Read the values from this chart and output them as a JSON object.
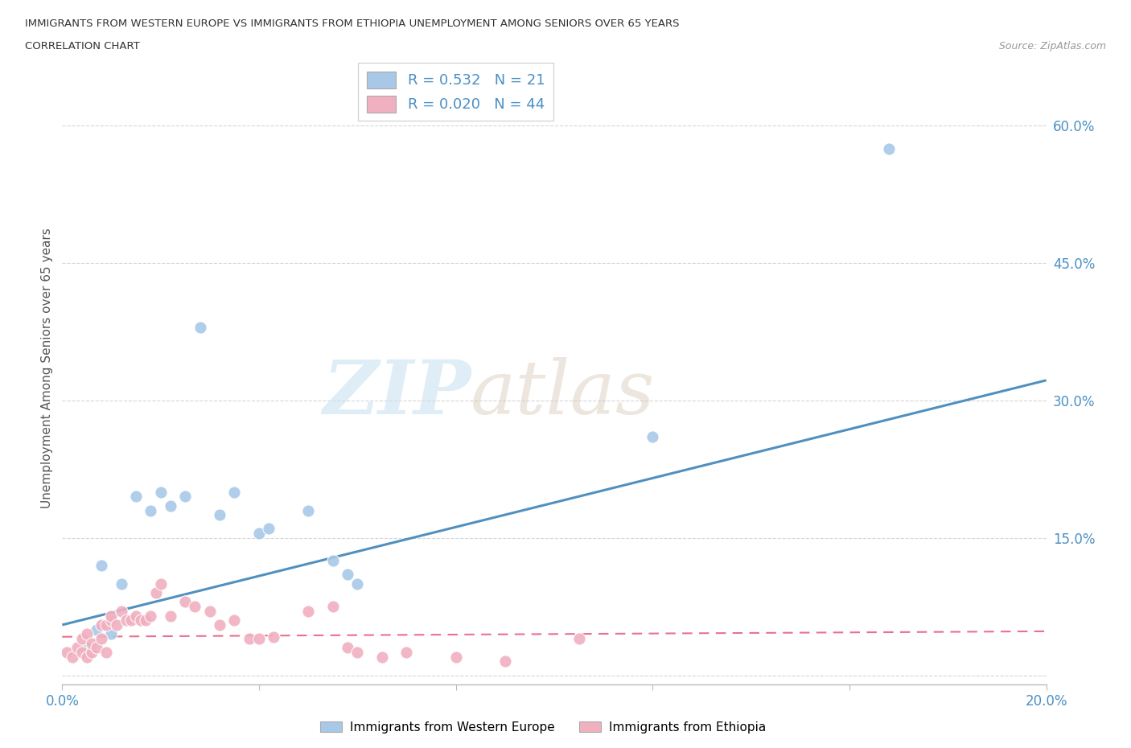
{
  "title_line1": "IMMIGRANTS FROM WESTERN EUROPE VS IMMIGRANTS FROM ETHIOPIA UNEMPLOYMENT AMONG SENIORS OVER 65 YEARS",
  "title_line2": "CORRELATION CHART",
  "source": "Source: ZipAtlas.com",
  "ylabel": "Unemployment Among Seniors over 65 years",
  "xlim": [
    0.0,
    0.2
  ],
  "ylim": [
    -0.01,
    0.68
  ],
  "yticks": [
    0.0,
    0.15,
    0.3,
    0.45,
    0.6
  ],
  "ytick_labels": [
    "",
    "15.0%",
    "30.0%",
    "45.0%",
    "60.0%"
  ],
  "xticks": [
    0.0,
    0.04,
    0.08,
    0.12,
    0.16,
    0.2
  ],
  "xtick_labels": [
    "0.0%",
    "",
    "",
    "",
    "",
    "20.0%"
  ],
  "blue_R": 0.532,
  "blue_N": 21,
  "pink_R": 0.02,
  "pink_N": 44,
  "watermark_zip": "ZIP",
  "watermark_atlas": "atlas",
  "blue_color": "#a8c8e8",
  "pink_color": "#f0b0c0",
  "blue_line_color": "#5090c0",
  "pink_line_color": "#e87090",
  "legend_label_blue": "Immigrants from Western Europe",
  "legend_label_pink": "Immigrants from Ethiopia",
  "blue_scatter_x": [
    0.005,
    0.007,
    0.008,
    0.01,
    0.012,
    0.015,
    0.018,
    0.02,
    0.022,
    0.025,
    0.028,
    0.032,
    0.035,
    0.04,
    0.042,
    0.05,
    0.055,
    0.058,
    0.06,
    0.12,
    0.168
  ],
  "blue_scatter_y": [
    0.03,
    0.05,
    0.12,
    0.045,
    0.1,
    0.195,
    0.18,
    0.2,
    0.185,
    0.195,
    0.38,
    0.175,
    0.2,
    0.155,
    0.16,
    0.18,
    0.125,
    0.11,
    0.1,
    0.26,
    0.575
  ],
  "pink_scatter_x": [
    0.001,
    0.002,
    0.003,
    0.004,
    0.004,
    0.005,
    0.005,
    0.006,
    0.006,
    0.007,
    0.008,
    0.008,
    0.009,
    0.009,
    0.01,
    0.01,
    0.011,
    0.012,
    0.013,
    0.014,
    0.015,
    0.016,
    0.017,
    0.018,
    0.019,
    0.02,
    0.022,
    0.025,
    0.027,
    0.03,
    0.032,
    0.035,
    0.038,
    0.04,
    0.043,
    0.05,
    0.055,
    0.058,
    0.06,
    0.065,
    0.07,
    0.08,
    0.09,
    0.105
  ],
  "pink_scatter_y": [
    0.025,
    0.02,
    0.03,
    0.025,
    0.04,
    0.02,
    0.045,
    0.025,
    0.035,
    0.03,
    0.04,
    0.055,
    0.025,
    0.055,
    0.06,
    0.065,
    0.055,
    0.07,
    0.06,
    0.06,
    0.065,
    0.06,
    0.06,
    0.065,
    0.09,
    0.1,
    0.065,
    0.08,
    0.075,
    0.07,
    0.055,
    0.06,
    0.04,
    0.04,
    0.042,
    0.07,
    0.075,
    0.03,
    0.025,
    0.02,
    0.025,
    0.02,
    0.015,
    0.04
  ],
  "blue_line_x0": 0.0,
  "blue_line_y0": 0.055,
  "blue_line_x1": 0.2,
  "blue_line_y1": 0.322,
  "pink_line_x0": 0.0,
  "pink_line_y0": 0.042,
  "pink_line_x1": 0.2,
  "pink_line_y1": 0.048,
  "background_color": "#ffffff",
  "grid_color": "#cccccc"
}
